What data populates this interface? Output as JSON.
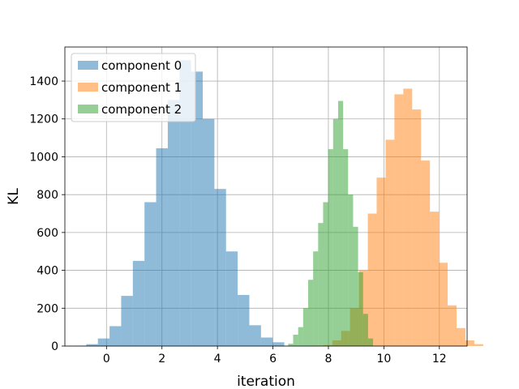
{
  "chart_data": {
    "type": "bar",
    "subtype": "overlapping-histogram",
    "title": "",
    "xlabel": "iteration",
    "ylabel": "KL",
    "xlim": [
      -1.5,
      13
    ],
    "ylim": [
      0,
      1580
    ],
    "xticks": [
      0,
      2,
      4,
      6,
      8,
      10,
      12
    ],
    "yticks": [
      0,
      200,
      400,
      600,
      800,
      1000,
      1200,
      1400
    ],
    "grid": true,
    "legend_position": "top-left",
    "bar_opacity": 0.5,
    "series": [
      {
        "name": "component 0",
        "color": "#1f77b4",
        "bin_start": -1.15,
        "bin_width": 0.42,
        "counts": [
          2,
          10,
          40,
          105,
          265,
          450,
          760,
          1045,
          1300,
          1510,
          1450,
          1200,
          830,
          500,
          270,
          110,
          45,
          20
        ]
      },
      {
        "name": "component 1",
        "color": "#ff7f0e",
        "bin_start": 7.5,
        "bin_width": 0.32,
        "counts": [
          2,
          5,
          30,
          80,
          200,
          400,
          700,
          890,
          1090,
          1330,
          1360,
          1250,
          980,
          710,
          440,
          215,
          95,
          30,
          10
        ]
      },
      {
        "name": "component 2",
        "color": "#2ca02c",
        "bin_start": 6.55,
        "bin_width": 0.18,
        "counts": [
          12,
          60,
          100,
          200,
          350,
          500,
          650,
          760,
          1040,
          1200,
          1295,
          1040,
          800,
          630,
          390,
          170,
          40
        ]
      }
    ]
  }
}
